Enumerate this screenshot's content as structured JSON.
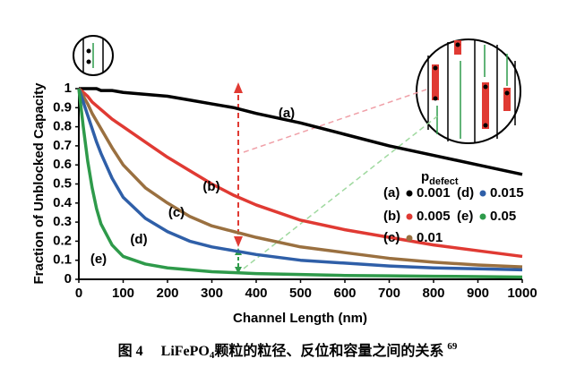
{
  "chart_data": {
    "type": "line",
    "x_label": "Channel Length (nm)",
    "y_label": "Fraction of Unblocked Capacity",
    "x": [
      0,
      10,
      20,
      30,
      40,
      50,
      75,
      100,
      150,
      200,
      250,
      300,
      350,
      400,
      500,
      600,
      700,
      800,
      900,
      1000
    ],
    "series": [
      {
        "name": "0.001",
        "tag": "(a)",
        "color": "#000000",
        "values": [
          1,
          1,
          1,
          1,
          1,
          0.99,
          0.99,
          0.98,
          0.97,
          0.96,
          0.94,
          0.92,
          0.9,
          0.87,
          0.82,
          0.76,
          0.7,
          0.65,
          0.6,
          0.55
        ]
      },
      {
        "name": "0.005",
        "tag": "(b)",
        "color": "#e03a33",
        "values": [
          1,
          0.98,
          0.96,
          0.93,
          0.91,
          0.89,
          0.84,
          0.8,
          0.72,
          0.64,
          0.57,
          0.5,
          0.44,
          0.39,
          0.31,
          0.26,
          0.22,
          0.18,
          0.15,
          0.12
        ]
      },
      {
        "name": "0.01",
        "tag": "(c)",
        "color": "#9a7040",
        "values": [
          1,
          0.96,
          0.92,
          0.87,
          0.83,
          0.79,
          0.69,
          0.6,
          0.48,
          0.4,
          0.33,
          0.28,
          0.25,
          0.22,
          0.17,
          0.14,
          0.11,
          0.09,
          0.075,
          0.065
        ]
      },
      {
        "name": "0.015",
        "tag": "(d)",
        "color": "#2f5fa8",
        "values": [
          1,
          0.93,
          0.86,
          0.79,
          0.72,
          0.66,
          0.53,
          0.43,
          0.32,
          0.25,
          0.2,
          0.17,
          0.15,
          0.13,
          0.1,
          0.085,
          0.07,
          0.06,
          0.055,
          0.05
        ]
      },
      {
        "name": "0.05",
        "tag": "(e)",
        "color": "#2e9a4a",
        "values": [
          1,
          0.8,
          0.62,
          0.48,
          0.37,
          0.29,
          0.18,
          0.12,
          0.08,
          0.06,
          0.05,
          0.04,
          0.035,
          0.03,
          0.025,
          0.02,
          0.018,
          0.016,
          0.014,
          0.012
        ]
      }
    ],
    "legend_title": "p",
    "legend_title_sub": "defect",
    "xlim": [
      0,
      1000
    ],
    "xticks": [
      0,
      100,
      200,
      300,
      400,
      500,
      600,
      700,
      800,
      900,
      1000
    ],
    "ylim": [
      0,
      1
    ],
    "yticks": [
      0,
      0.1,
      0.2,
      0.3,
      0.4,
      0.5,
      0.6,
      0.7,
      0.8,
      0.9,
      1
    ]
  },
  "caption": {
    "label": "图 4",
    "text": "LiFePO",
    "sub": "4",
    "rest": "颗粒的粒径、反位和容量之间的关系",
    "ref": "69"
  }
}
